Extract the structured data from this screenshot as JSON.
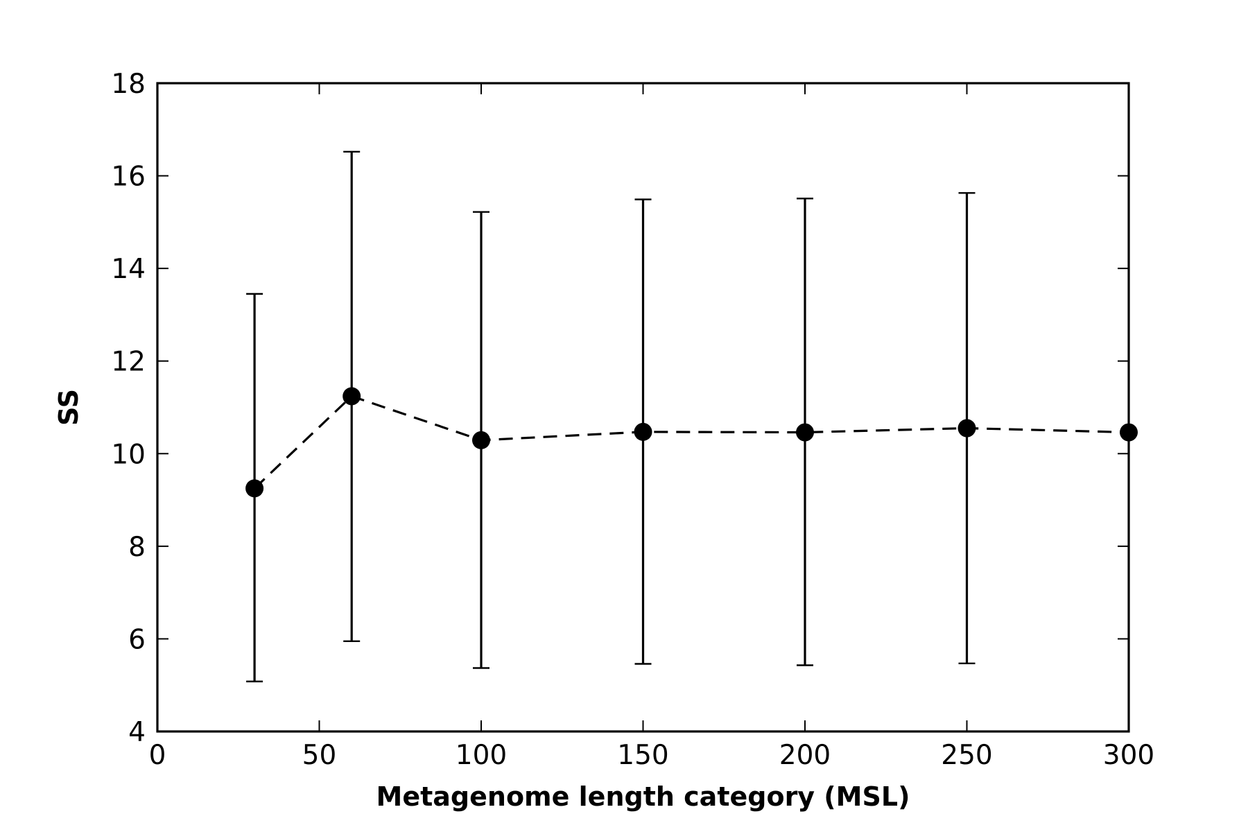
{
  "chart_data": {
    "type": "line",
    "title": "",
    "xlabel": "Metagenome length category (MSL)",
    "ylabel": "SS",
    "xlim": [
      0,
      300
    ],
    "ylim": [
      4,
      18
    ],
    "xticks": [
      0,
      50,
      100,
      150,
      200,
      250,
      300
    ],
    "yticks": [
      4,
      6,
      8,
      10,
      12,
      14,
      16,
      18
    ],
    "grid": false,
    "legend": "none",
    "line_style": "dashed",
    "marker": "circle",
    "color": "#000000",
    "series": [
      {
        "x": [
          30,
          60,
          100,
          150,
          200,
          250,
          300
        ],
        "y": [
          9.25,
          11.24,
          10.29,
          10.47,
          10.46,
          10.55,
          10.46
        ],
        "error_lower": [
          5.08,
          5.95,
          5.37,
          5.46,
          5.43,
          5.47,
          null
        ],
        "error_upper": [
          13.45,
          16.52,
          15.22,
          15.49,
          15.51,
          15.63,
          null
        ]
      }
    ]
  }
}
